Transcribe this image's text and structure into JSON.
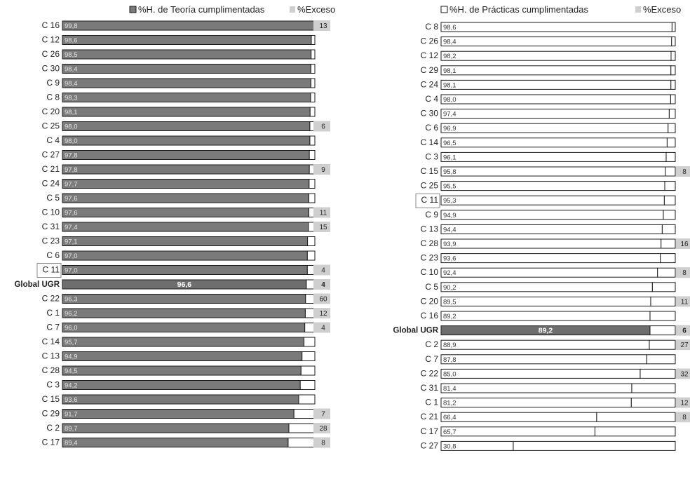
{
  "colors": {
    "bar_fill_teoria": "#7a7a7a",
    "bar_fill_practicas": "#ffffff",
    "global_fill": "#6e6e6e",
    "exceso_fill": "#cfcfcf",
    "outline": "#1a1a1a",
    "highlight_box": "#8a8a8a",
    "value_text_light": "#e8e8e8",
    "value_text_dark": "#333333"
  },
  "chart_data": [
    {
      "type": "bar",
      "orientation": "horizontal",
      "stacked_with": "remainder_to_100",
      "legend": {
        "position": "top",
        "series_label": "%H. de Teoría cumplimentadas",
        "exceso_label": "%Exceso"
      },
      "xlim": [
        0,
        100
      ],
      "highlighted_category": "C 11",
      "categories": [
        "C 16",
        "C 12",
        "C 26",
        "C 30",
        "C 9",
        "C 8",
        "C 20",
        "C 25",
        "C 4",
        "C 27",
        "C 21",
        "C 24",
        "C 5",
        "C 10",
        "C 31",
        "C 23",
        "C 6",
        "C 11",
        "Global UGR",
        "C 22",
        "C 1",
        "C 7",
        "C 14",
        "C 13",
        "C 28",
        "C 3",
        "C 15",
        "C 29",
        "C 2",
        "C 17"
      ],
      "value_labels": [
        "99,8",
        "98,6",
        "98,5",
        "98,4",
        "98,4",
        "98,3",
        "98,1",
        "98,0",
        "98,0",
        "97,8",
        "97,8",
        "97,7",
        "97,6",
        "97,6",
        "97,4",
        "97,1",
        "97,0",
        "97,0",
        "96,6",
        "96,3",
        "96,2",
        "96,0",
        "95,7",
        "94,9",
        "94,5",
        "94,2",
        "93,6",
        "91,7",
        "89,7",
        "89,4"
      ],
      "values": [
        99.8,
        98.6,
        98.5,
        98.4,
        98.4,
        98.3,
        98.1,
        98.0,
        98.0,
        97.8,
        97.8,
        97.7,
        97.6,
        97.6,
        97.4,
        97.1,
        97.0,
        97.0,
        96.6,
        96.3,
        96.2,
        96.0,
        95.7,
        94.9,
        94.5,
        94.2,
        93.6,
        91.7,
        89.7,
        89.4
      ],
      "exceso": [
        "13",
        "",
        "",
        "",
        "",
        "",
        "",
        "6",
        "",
        "",
        "9",
        "",
        "",
        "11",
        "15",
        "",
        "",
        "4",
        "4",
        "60",
        "12",
        "4",
        "",
        "",
        "",
        "",
        "",
        "7",
        "28",
        "8"
      ]
    },
    {
      "type": "bar",
      "orientation": "horizontal",
      "stacked_with": "remainder_to_100",
      "legend": {
        "position": "top",
        "series_label": "%H. de Prácticas cumplimentadas",
        "exceso_label": "%Exceso"
      },
      "xlim": [
        0,
        100
      ],
      "highlighted_category": "C 11",
      "categories": [
        "C 8",
        "C 26",
        "C 12",
        "C 29",
        "C 24",
        "C 4",
        "C 30",
        "C 6",
        "C 14",
        "C 3",
        "C 15",
        "C 25",
        "C 11",
        "C 9",
        "C 13",
        "C 28",
        "C 23",
        "C 10",
        "C 5",
        "C 20",
        "C 16",
        "Global UGR",
        "C 2",
        "C 7",
        "C 22",
        "C 31",
        "C 1",
        "C 21",
        "C 17",
        "C 27"
      ],
      "value_labels": [
        "98,6",
        "98,4",
        "98,2",
        "98,1",
        "98,1",
        "98,0",
        "97,4",
        "96,9",
        "96,5",
        "96,1",
        "95,8",
        "95,5",
        "95,3",
        "94,9",
        "94,4",
        "93,9",
        "93,6",
        "92,4",
        "90,2",
        "89,5",
        "89,2",
        "89,2",
        "88,9",
        "87,8",
        "85,0",
        "81,4",
        "81,2",
        "66,4",
        "65,7",
        "30,8"
      ],
      "values": [
        98.6,
        98.4,
        98.2,
        98.1,
        98.1,
        98.0,
        97.4,
        96.9,
        96.5,
        96.1,
        95.8,
        95.5,
        95.3,
        94.9,
        94.4,
        93.9,
        93.6,
        92.4,
        90.2,
        89.5,
        89.2,
        89.2,
        88.9,
        87.8,
        85.0,
        81.4,
        81.2,
        66.4,
        65.7,
        30.8
      ],
      "exceso": [
        "",
        "",
        "",
        "",
        "",
        "",
        "",
        "",
        "",
        "",
        "8",
        "",
        "",
        "",
        "",
        "16",
        "",
        "8",
        "",
        "11",
        "",
        "6",
        "27",
        "",
        "32",
        "",
        "12",
        "8",
        "",
        ""
      ]
    }
  ]
}
